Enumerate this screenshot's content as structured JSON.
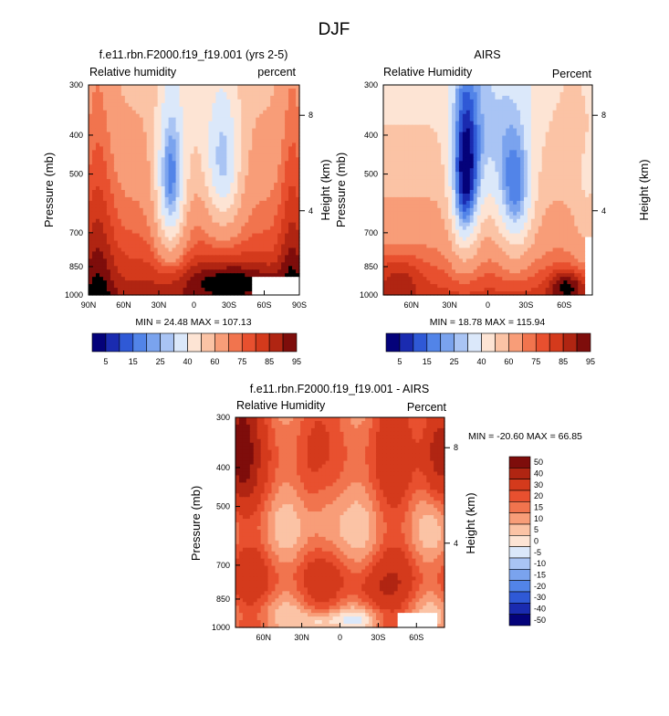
{
  "page_title": "DJF",
  "palette_rh": [
    "#04027a",
    "#1a2bb0",
    "#2f59d6",
    "#5284e8",
    "#7aa3ee",
    "#a9c4f4",
    "#dbe8fa",
    "#fde4d4",
    "#fbc3a5",
    "#f89d78",
    "#f1744e",
    "#e8502f",
    "#d43a1c",
    "#b02512",
    "#7e0d0b"
  ],
  "palette_diff": [
    "#04027a",
    "#1a2bb0",
    "#2f59d6",
    "#5284e8",
    "#7aa3ee",
    "#a9c4f4",
    "#dbe8fa",
    "#fde4d4",
    "#fbc3a5",
    "#f89d78",
    "#f1744e",
    "#e8502f",
    "#d43a1c",
    "#b02512",
    "#7e0d0b"
  ],
  "chart_data": [
    {
      "type": "heatmap",
      "title": "f.e11.rbn.F2000.f19_f19.001 (yrs 2-5)",
      "left_label": "Relative humidity",
      "right_label": "percent",
      "ylabel": "Pressure (mb)",
      "ylabel_right": "Height (km)",
      "y_ticks": [
        "300",
        "400",
        "500",
        "700",
        "850",
        "1000"
      ],
      "y_ticks_right": [
        "8",
        "4"
      ],
      "x_ticks": [
        "90N",
        "60N",
        "30N",
        "0",
        "30S",
        "60S",
        "90S"
      ],
      "stats": "MIN =  24.48   MAX = 107.13",
      "lat_range": [
        90,
        -90
      ],
      "field": "model",
      "masked_region": {
        "lat_from": -50,
        "lat_to": -90,
        "p_from": 900,
        "p_to": 1000
      }
    },
    {
      "type": "heatmap",
      "title": "AIRS",
      "left_label": "Relative Humidity",
      "right_label": "Percent",
      "ylabel": "Pressure (mb)",
      "ylabel_right": "Height (km)",
      "y_ticks": [
        "300",
        "400",
        "500",
        "700",
        "850",
        "1000"
      ],
      "y_ticks_right": [
        "8",
        "4"
      ],
      "x_ticks": [
        "60N",
        "30N",
        "0",
        "30S",
        "60S"
      ],
      "stats": "MIN =  18.78   MAX = 115.94",
      "lat_range": [
        82,
        -82
      ],
      "field": "obs",
      "masked_region": {
        "lat_from": -75,
        "lat_to": -82,
        "p_from": 720,
        "p_to": 1000
      }
    },
    {
      "type": "heatmap",
      "title": "f.e11.rbn.F2000.f19_f19.001 - AIRS",
      "left_label": "Relative Humidity",
      "right_label": "Percent",
      "ylabel": "Pressure (mb)",
      "ylabel_right": "Height (km)",
      "y_ticks": [
        "300",
        "400",
        "500",
        "700",
        "850",
        "1000"
      ],
      "y_ticks_right": [
        "8",
        "4"
      ],
      "x_ticks": [
        "60N",
        "30N",
        "0",
        "30S",
        "60S"
      ],
      "stats": "MIN = -20.60   MAX =  66.85",
      "lat_range": [
        82,
        -82
      ],
      "field": "diff",
      "masked_region": {
        "lat_from": -44,
        "lat_to": -77,
        "p_from": 925,
        "p_to": 1000
      }
    }
  ],
  "colorbar_rh": {
    "levels": [
      "5",
      "10",
      "15",
      "20",
      "25",
      "30",
      "40",
      "50",
      "60",
      "70",
      "75",
      "80",
      "85",
      "90",
      "95"
    ],
    "labels_shown": [
      "5",
      "15",
      "25",
      "40",
      "60",
      "75",
      "85",
      "95"
    ]
  },
  "colorbar_diff": {
    "labels": [
      "50",
      "40",
      "30",
      "20",
      "15",
      "10",
      "5",
      "0",
      "-5",
      "-10",
      "-15",
      "-20",
      "-30",
      "-40",
      "-50"
    ]
  }
}
